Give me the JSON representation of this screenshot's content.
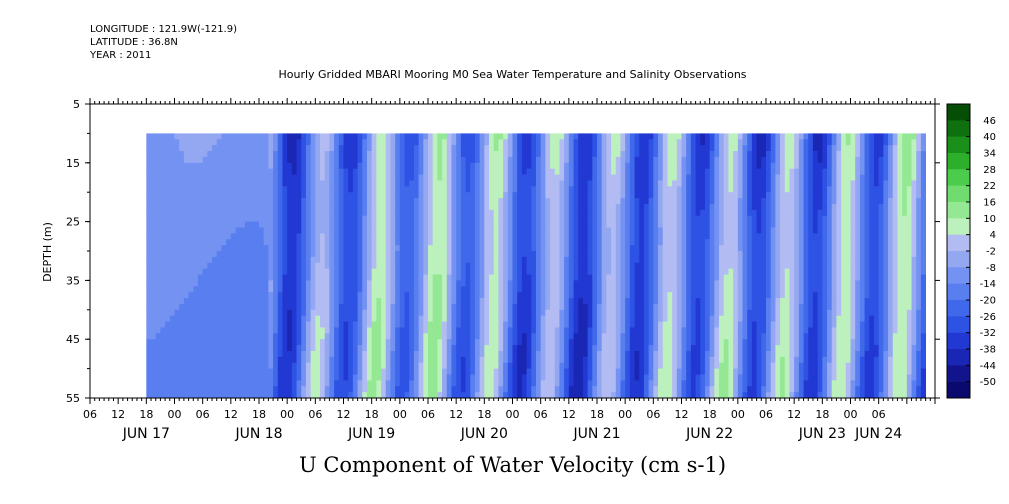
{
  "header": {
    "longitude": "LONGITUDE : 121.9W(-121.9)",
    "latitude": "LATITUDE : 36.8N",
    "year": "YEAR : 2011"
  },
  "chart_data": {
    "type": "heatmap",
    "title": "Hourly Gridded MBARI Mooring M0 Sea Water Temperature and Salinity Observations",
    "xlabel": "U Component of Water Velocity (cm s-1)",
    "ylabel": "DEPTH (m)",
    "ylim": [
      5,
      55
    ],
    "y_inverted": true,
    "y_ticks": [
      5,
      15,
      25,
      35,
      45,
      55
    ],
    "x_hour_ticks": [
      "06",
      "12",
      "18",
      "00",
      "06",
      "12",
      "18",
      "00",
      "06",
      "12",
      "18",
      "00",
      "06",
      "12",
      "18",
      "00",
      "06",
      "12",
      "18",
      "00",
      "06",
      "12",
      "18",
      "00",
      "06",
      "12",
      "18",
      "00",
      "06"
    ],
    "x_day_labels": [
      {
        "label": "JUN 17",
        "hour": 12
      },
      {
        "label": "JUN 18",
        "hour": 36
      },
      {
        "label": "JUN 19",
        "hour": 60
      },
      {
        "label": "JUN 20",
        "hour": 84
      },
      {
        "label": "JUN 21",
        "hour": 108
      },
      {
        "label": "JUN 22",
        "hour": 132
      },
      {
        "label": "JUN 23",
        "hour": 156
      },
      {
        "label": "JUN 24",
        "hour": 168
      }
    ],
    "data_depth_range": [
      10,
      55
    ],
    "colorbar": {
      "levels": [
        -50,
        -44,
        -38,
        -32,
        -26,
        -20,
        -14,
        -8,
        -2,
        4,
        10,
        16,
        22,
        28,
        34,
        40,
        46
      ],
      "labels": [
        "46",
        "40",
        "34",
        "28",
        "22",
        "16",
        "10",
        "4",
        "-2",
        "-8",
        "-14",
        "-20",
        "-26",
        "-32",
        "-38",
        "-44",
        "-50"
      ],
      "colors": [
        "#0a0a6e",
        "#12148e",
        "#1a26b4",
        "#2238d2",
        "#2e52e4",
        "#4068ea",
        "#587ef0",
        "#7492f2",
        "#94a8f2",
        "#b2bcf2",
        "#bcf0bc",
        "#94e894",
        "#70dc70",
        "#4ccc4c",
        "#2cb02c",
        "#1a901a",
        "#0e700e",
        "#064e06"
      ]
    },
    "fields": [
      {
        "start_hour": 12,
        "end_hour": 38,
        "description": "smooth -8 to -20 region"
      },
      {
        "start_hour": 38,
        "end_hour": 178,
        "description": "tidal banded field, values -32 to 22"
      }
    ]
  }
}
